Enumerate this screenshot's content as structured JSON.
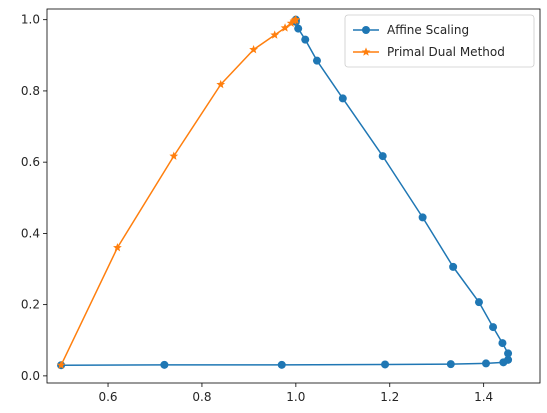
{
  "chart_data": {
    "type": "line",
    "title": "",
    "xlabel": "",
    "ylabel": "",
    "xlim": [
      0.47,
      1.52
    ],
    "ylim": [
      -0.02,
      1.03
    ],
    "xticks": [
      0.6,
      0.8,
      1.0,
      1.2,
      1.4
    ],
    "xtick_labels": [
      "0.6",
      "0.8",
      "1.0",
      "1.2",
      "1.4"
    ],
    "yticks": [
      0.0,
      0.2,
      0.4,
      0.6,
      0.8,
      1.0
    ],
    "ytick_labels": [
      "0.0",
      "0.2",
      "0.4",
      "0.6",
      "0.8",
      "1.0"
    ],
    "grid": false,
    "legend_position": "top-right",
    "series": [
      {
        "name": "Affine Scaling",
        "color": "#1f77b4",
        "marker": "circle",
        "points": [
          [
            0.5,
            0.03
          ],
          [
            0.72,
            0.031
          ],
          [
            0.97,
            0.031
          ],
          [
            1.19,
            0.032
          ],
          [
            1.33,
            0.033
          ],
          [
            1.405,
            0.035
          ],
          [
            1.442,
            0.038
          ],
          [
            1.452,
            0.045
          ],
          [
            1.452,
            0.063
          ],
          [
            1.44,
            0.092
          ],
          [
            1.42,
            0.137
          ],
          [
            1.39,
            0.207
          ],
          [
            1.335,
            0.306
          ],
          [
            1.27,
            0.445
          ],
          [
            1.185,
            0.617
          ],
          [
            1.1,
            0.779
          ],
          [
            1.045,
            0.885
          ],
          [
            1.02,
            0.944
          ],
          [
            1.005,
            0.975
          ],
          [
            1.0,
            0.994
          ],
          [
            1.0,
            0.998
          ],
          [
            1.0,
            1.0
          ]
        ]
      },
      {
        "name": "Primal Dual Method",
        "color": "#ff7f0e",
        "marker": "star",
        "points": [
          [
            0.5,
            0.03
          ],
          [
            0.62,
            0.36
          ],
          [
            0.74,
            0.617
          ],
          [
            0.84,
            0.818
          ],
          [
            0.91,
            0.916
          ],
          [
            0.955,
            0.957
          ],
          [
            0.977,
            0.977
          ],
          [
            0.99,
            0.99
          ],
          [
            0.996,
            0.996
          ],
          [
            0.999,
            0.999
          ],
          [
            1.0,
            1.0
          ]
        ]
      }
    ]
  }
}
